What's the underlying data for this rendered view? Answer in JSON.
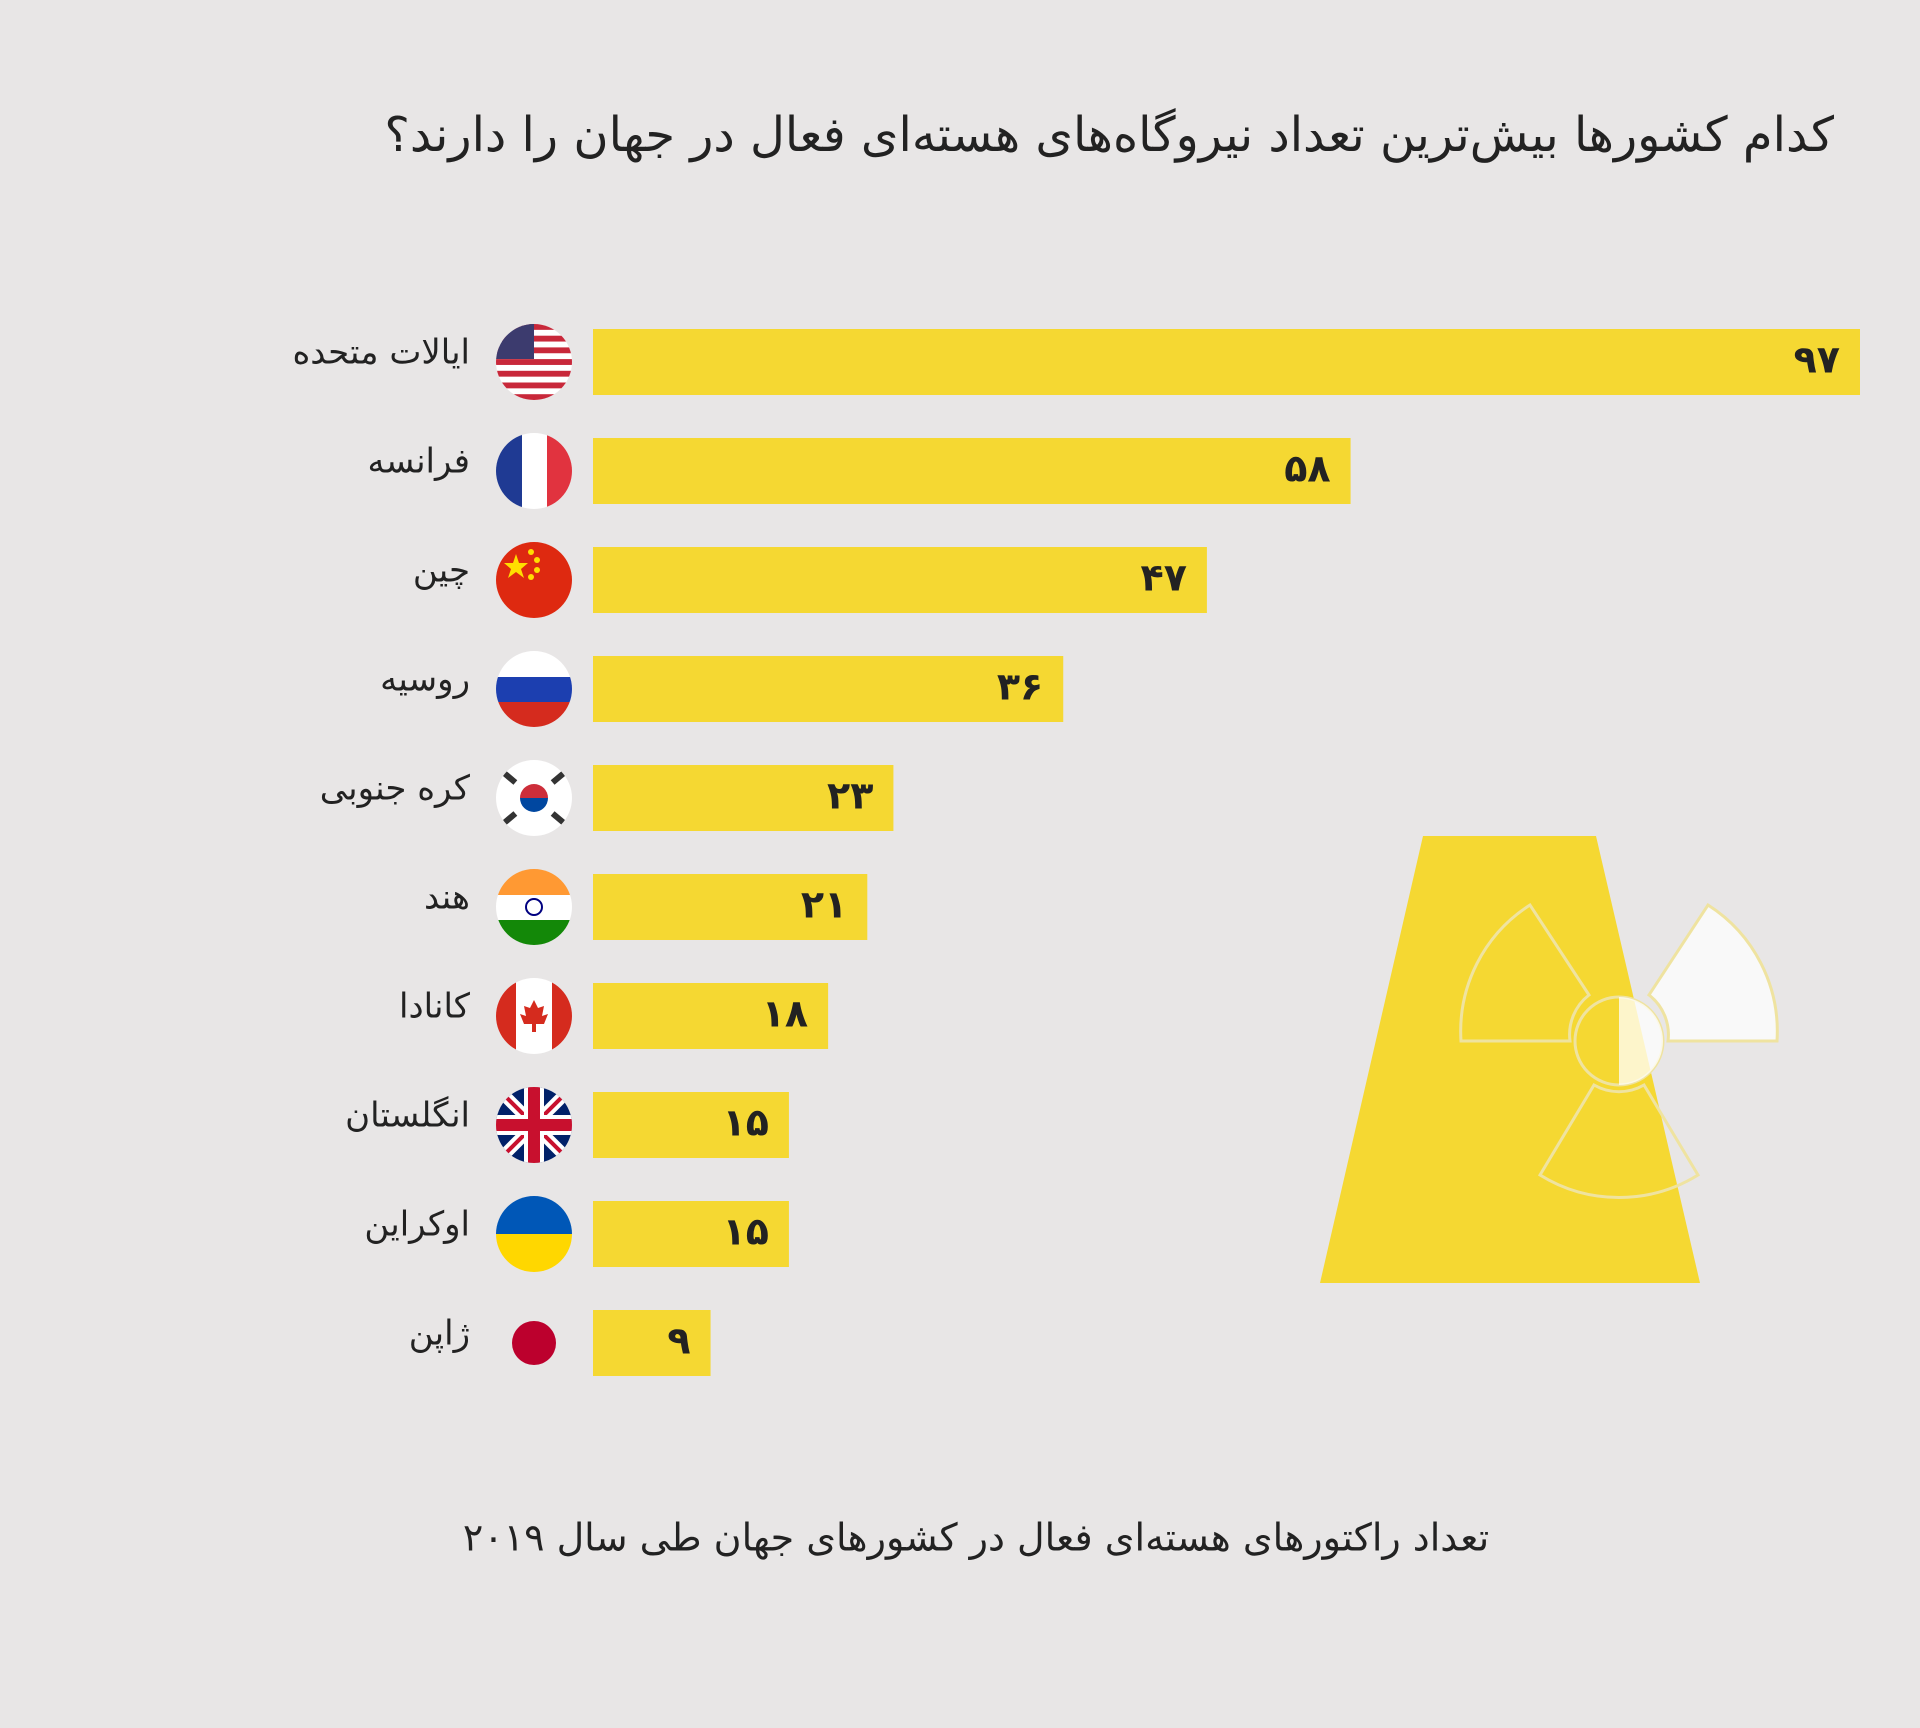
{
  "chart_data": {
    "type": "bar",
    "orientation": "horizontal",
    "title": "کدام کشورها بیش‌ترین تعداد نیروگاه‌های هسته‌ای فعال در جهان را دارند؟",
    "caption": "تعداد راکتورهای هسته‌ای فعال در کشورهای جهان طی سال ۲۰۱۹",
    "categories": [
      "ایالات متحده",
      "فرانسه",
      "چین",
      "روسیه",
      "کره جنوبی",
      "هند",
      "کانادا",
      "انگلستان",
      "اوکراین",
      "ژاپن"
    ],
    "values": [
      97,
      58,
      47,
      36,
      23,
      21,
      18,
      15,
      15,
      9
    ],
    "value_labels": [
      "۹۷",
      "۵۸",
      "۴۷",
      "۳۶",
      "۲۳",
      "۲۱",
      "۱۸",
      "۱۵",
      "۱۵",
      "۹"
    ],
    "color": "#f5d832"
  }
}
